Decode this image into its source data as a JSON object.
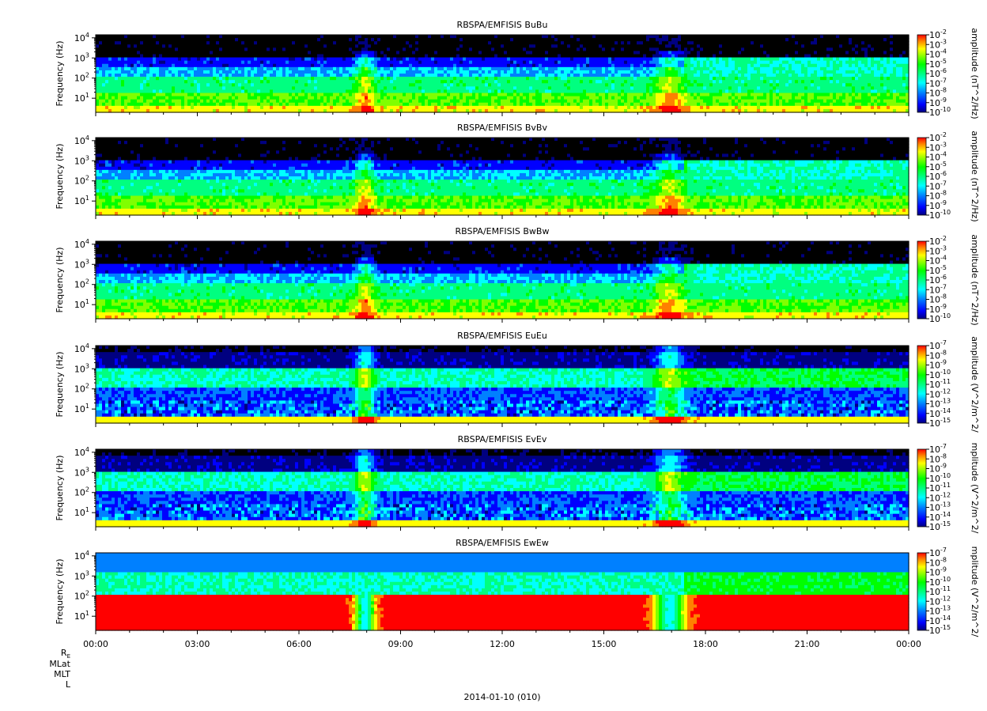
{
  "chart_data": {
    "type": "heatmap",
    "x_axis": {
      "tick_labels": [
        "00:00",
        "03:00",
        "06:00",
        "09:00",
        "12:00",
        "15:00",
        "18:00",
        "21:00",
        "00:00"
      ],
      "x_hours": [
        0,
        3,
        6,
        9,
        12,
        15,
        18,
        21,
        24
      ],
      "date_label": "2014-01-10 (010)",
      "ephemeris_labels": [
        "RE",
        "MLat",
        "MLT",
        "L"
      ]
    },
    "panels": [
      {
        "title": "RBSPA/EMFISIS  BuBu",
        "ylabel": "Frequency (Hz)",
        "y_scale": "log",
        "y_tick_exponents": [
          1,
          2,
          3,
          4
        ],
        "colorbar_label": "amplitude (nT^2/Hz)",
        "colorbar_tick_exponents": [
          -2,
          -3,
          -4,
          -5,
          -6,
          -7,
          -8,
          -9,
          -10
        ],
        "kind": "B"
      },
      {
        "title": "RBSPA/EMFISIS  BvBv",
        "ylabel": "Frequency (Hz)",
        "y_scale": "log",
        "y_tick_exponents": [
          1,
          2,
          3,
          4
        ],
        "colorbar_label": "amplitude (nT^2/Hz)",
        "colorbar_tick_exponents": [
          -2,
          -3,
          -4,
          -5,
          -6,
          -7,
          -8,
          -9,
          -10
        ],
        "kind": "B"
      },
      {
        "title": "RBSPA/EMFISIS  BwBw",
        "ylabel": "Frequency (Hz)",
        "y_scale": "log",
        "y_tick_exponents": [
          1,
          2,
          3,
          4
        ],
        "colorbar_label": "amplitude (nT^2/Hz)",
        "colorbar_tick_exponents": [
          -2,
          -3,
          -4,
          -5,
          -6,
          -7,
          -8,
          -9,
          -10
        ],
        "kind": "B"
      },
      {
        "title": "RBSPA/EMFISIS  EuEu",
        "ylabel": "Frequency (Hz)",
        "y_scale": "log",
        "y_tick_exponents": [
          1,
          2,
          3,
          4
        ],
        "colorbar_label": "amplitude (V^2/m^2/",
        "colorbar_tick_exponents": [
          -7,
          -8,
          -9,
          -10,
          -11,
          -12,
          -13,
          -14,
          -15
        ],
        "kind": "E"
      },
      {
        "title": "RBSPA/EMFISIS  EvEv",
        "ylabel": "Frequency (Hz)",
        "y_scale": "log",
        "y_tick_exponents": [
          1,
          2,
          3,
          4
        ],
        "colorbar_label": "mplitude (V^2/m^2/",
        "colorbar_tick_exponents": [
          -7,
          -8,
          -9,
          -10,
          -11,
          -12,
          -13,
          -14,
          -15
        ],
        "kind": "E"
      },
      {
        "title": "RBSPA/EMFISIS  EwEw",
        "ylabel": "Frequency (Hz)",
        "y_scale": "log",
        "y_tick_exponents": [
          1,
          2,
          3,
          4
        ],
        "colorbar_label": "mplitude (V^2/m^2/",
        "colorbar_tick_exponents": [
          -7,
          -8,
          -9,
          -10,
          -11,
          -12,
          -13,
          -14,
          -15
        ],
        "kind": "Ew"
      }
    ],
    "colormap": [
      "#000000",
      "#000080",
      "#0000ff",
      "#0080ff",
      "#00ffff",
      "#00ff80",
      "#00ff00",
      "#80ff00",
      "#ffff00",
      "#ff8000",
      "#ff0000"
    ]
  }
}
